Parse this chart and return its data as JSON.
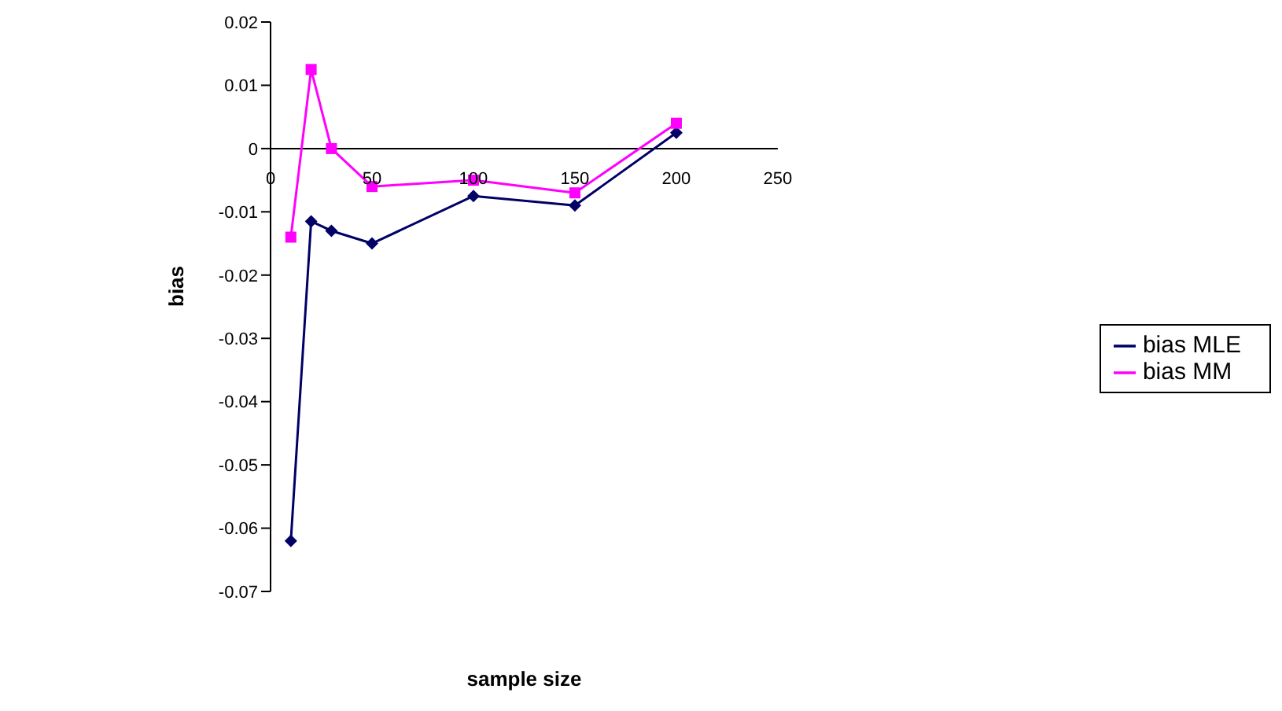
{
  "chart_data": {
    "type": "line",
    "xlabel": "sample size",
    "ylabel": "bias",
    "x": [
      10,
      20,
      30,
      50,
      100,
      150,
      200
    ],
    "series": [
      {
        "name": "bias MLE",
        "color": "#000066",
        "marker": "diamond",
        "values": [
          -0.062,
          -0.0115,
          -0.013,
          -0.015,
          -0.0075,
          -0.009,
          0.0025
        ]
      },
      {
        "name": "bias MM",
        "color": "#ff00ff",
        "marker": "square",
        "values": [
          -0.014,
          0.0125,
          0,
          -0.006,
          -0.005,
          -0.007,
          0.004
        ]
      }
    ],
    "xlim": [
      0,
      250
    ],
    "xticks": [
      0,
      50,
      100,
      150,
      200,
      250
    ],
    "ylim": [
      -0.07,
      0.02
    ],
    "yticks": [
      -0.07,
      -0.06,
      -0.05,
      -0.04,
      -0.03,
      -0.02,
      -0.01,
      0,
      0.01,
      0.02
    ],
    "legend": "right",
    "line_style": "solid"
  }
}
